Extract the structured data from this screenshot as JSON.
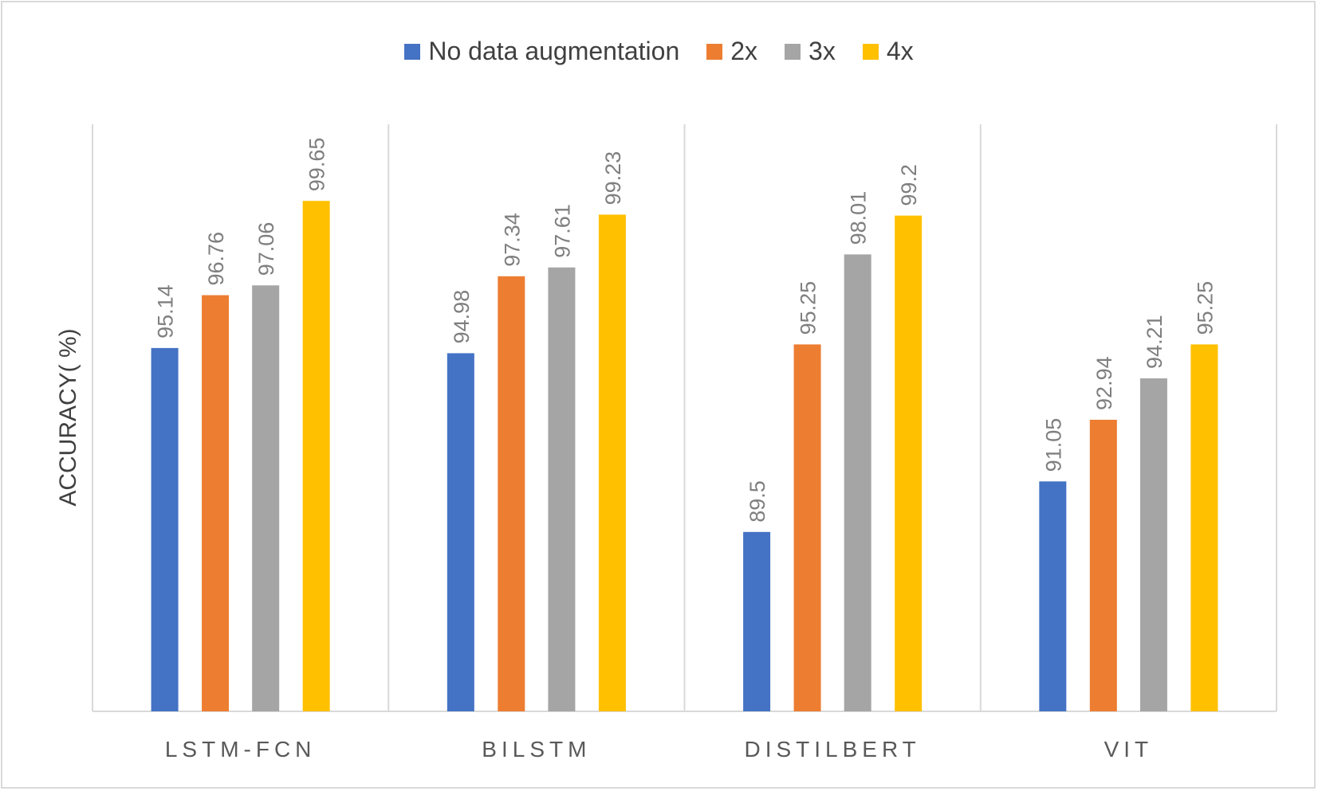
{
  "chart_data": {
    "type": "bar",
    "title": "",
    "xlabel": "",
    "ylabel": "ACCURACY( %)",
    "ylim": [
      84,
      102
    ],
    "grid": "vertical category separators",
    "legend_position": "top",
    "categories": [
      "LSTM-FCN",
      "BILSTM",
      "DISTILBERT",
      "VIT"
    ],
    "series": [
      {
        "name": "No data augmentation",
        "color": "#4472c4",
        "values": [
          95.14,
          94.98,
          89.5,
          91.05
        ]
      },
      {
        "name": "2x",
        "color": "#ed7d31",
        "values": [
          96.76,
          97.34,
          95.25,
          92.94
        ]
      },
      {
        "name": "3x",
        "color": "#a5a5a5",
        "values": [
          97.06,
          97.61,
          98.01,
          94.21
        ]
      },
      {
        "name": "4x",
        "color": "#ffc000",
        "values": [
          99.65,
          99.23,
          99.2,
          95.25
        ]
      }
    ]
  }
}
